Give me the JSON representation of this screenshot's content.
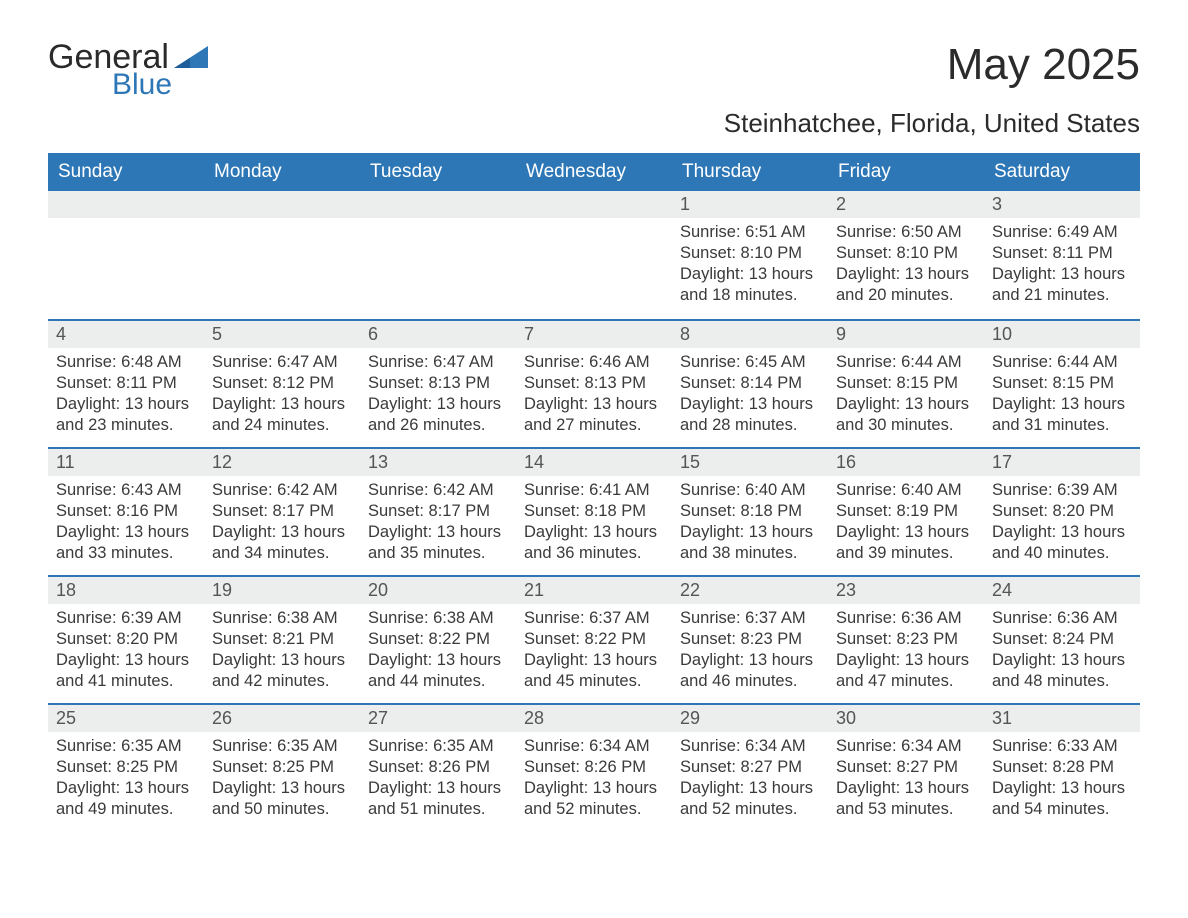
{
  "logo": {
    "word1": "General",
    "word2": "Blue"
  },
  "title": "May 2025",
  "subtitle": "Steinhatchee, Florida, United States",
  "colors": {
    "header_bg": "#2d77b7",
    "header_text": "#ffffff",
    "daynum_bg": "#eceded",
    "daynum_border": "#2d77b7",
    "body_text": "#3a3a3a",
    "page_bg": "#ffffff"
  },
  "fonts": {
    "title_size_pt": 33,
    "subtitle_size_pt": 20,
    "header_size_pt": 14,
    "cell_size_pt": 12
  },
  "days_of_week": [
    "Sunday",
    "Monday",
    "Tuesday",
    "Wednesday",
    "Thursday",
    "Friday",
    "Saturday"
  ],
  "layout": {
    "first_weekday_index": 4,
    "rows": 5,
    "cols": 7
  },
  "days": [
    {
      "n": 1,
      "sunrise": "6:51 AM",
      "sunset": "8:10 PM",
      "daylight": "13 hours and 18 minutes."
    },
    {
      "n": 2,
      "sunrise": "6:50 AM",
      "sunset": "8:10 PM",
      "daylight": "13 hours and 20 minutes."
    },
    {
      "n": 3,
      "sunrise": "6:49 AM",
      "sunset": "8:11 PM",
      "daylight": "13 hours and 21 minutes."
    },
    {
      "n": 4,
      "sunrise": "6:48 AM",
      "sunset": "8:11 PM",
      "daylight": "13 hours and 23 minutes."
    },
    {
      "n": 5,
      "sunrise": "6:47 AM",
      "sunset": "8:12 PM",
      "daylight": "13 hours and 24 minutes."
    },
    {
      "n": 6,
      "sunrise": "6:47 AM",
      "sunset": "8:13 PM",
      "daylight": "13 hours and 26 minutes."
    },
    {
      "n": 7,
      "sunrise": "6:46 AM",
      "sunset": "8:13 PM",
      "daylight": "13 hours and 27 minutes."
    },
    {
      "n": 8,
      "sunrise": "6:45 AM",
      "sunset": "8:14 PM",
      "daylight": "13 hours and 28 minutes."
    },
    {
      "n": 9,
      "sunrise": "6:44 AM",
      "sunset": "8:15 PM",
      "daylight": "13 hours and 30 minutes."
    },
    {
      "n": 10,
      "sunrise": "6:44 AM",
      "sunset": "8:15 PM",
      "daylight": "13 hours and 31 minutes."
    },
    {
      "n": 11,
      "sunrise": "6:43 AM",
      "sunset": "8:16 PM",
      "daylight": "13 hours and 33 minutes."
    },
    {
      "n": 12,
      "sunrise": "6:42 AM",
      "sunset": "8:17 PM",
      "daylight": "13 hours and 34 minutes."
    },
    {
      "n": 13,
      "sunrise": "6:42 AM",
      "sunset": "8:17 PM",
      "daylight": "13 hours and 35 minutes."
    },
    {
      "n": 14,
      "sunrise": "6:41 AM",
      "sunset": "8:18 PM",
      "daylight": "13 hours and 36 minutes."
    },
    {
      "n": 15,
      "sunrise": "6:40 AM",
      "sunset": "8:18 PM",
      "daylight": "13 hours and 38 minutes."
    },
    {
      "n": 16,
      "sunrise": "6:40 AM",
      "sunset": "8:19 PM",
      "daylight": "13 hours and 39 minutes."
    },
    {
      "n": 17,
      "sunrise": "6:39 AM",
      "sunset": "8:20 PM",
      "daylight": "13 hours and 40 minutes."
    },
    {
      "n": 18,
      "sunrise": "6:39 AM",
      "sunset": "8:20 PM",
      "daylight": "13 hours and 41 minutes."
    },
    {
      "n": 19,
      "sunrise": "6:38 AM",
      "sunset": "8:21 PM",
      "daylight": "13 hours and 42 minutes."
    },
    {
      "n": 20,
      "sunrise": "6:38 AM",
      "sunset": "8:22 PM",
      "daylight": "13 hours and 44 minutes."
    },
    {
      "n": 21,
      "sunrise": "6:37 AM",
      "sunset": "8:22 PM",
      "daylight": "13 hours and 45 minutes."
    },
    {
      "n": 22,
      "sunrise": "6:37 AM",
      "sunset": "8:23 PM",
      "daylight": "13 hours and 46 minutes."
    },
    {
      "n": 23,
      "sunrise": "6:36 AM",
      "sunset": "8:23 PM",
      "daylight": "13 hours and 47 minutes."
    },
    {
      "n": 24,
      "sunrise": "6:36 AM",
      "sunset": "8:24 PM",
      "daylight": "13 hours and 48 minutes."
    },
    {
      "n": 25,
      "sunrise": "6:35 AM",
      "sunset": "8:25 PM",
      "daylight": "13 hours and 49 minutes."
    },
    {
      "n": 26,
      "sunrise": "6:35 AM",
      "sunset": "8:25 PM",
      "daylight": "13 hours and 50 minutes."
    },
    {
      "n": 27,
      "sunrise": "6:35 AM",
      "sunset": "8:26 PM",
      "daylight": "13 hours and 51 minutes."
    },
    {
      "n": 28,
      "sunrise": "6:34 AM",
      "sunset": "8:26 PM",
      "daylight": "13 hours and 52 minutes."
    },
    {
      "n": 29,
      "sunrise": "6:34 AM",
      "sunset": "8:27 PM",
      "daylight": "13 hours and 52 minutes."
    },
    {
      "n": 30,
      "sunrise": "6:34 AM",
      "sunset": "8:27 PM",
      "daylight": "13 hours and 53 minutes."
    },
    {
      "n": 31,
      "sunrise": "6:33 AM",
      "sunset": "8:28 PM",
      "daylight": "13 hours and 54 minutes."
    }
  ],
  "labels": {
    "sunrise": "Sunrise: ",
    "sunset": "Sunset: ",
    "daylight": "Daylight: "
  }
}
